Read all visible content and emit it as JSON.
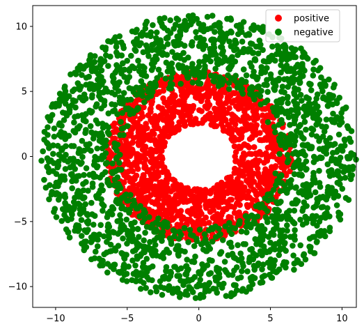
{
  "chart_data": {
    "type": "scatter",
    "title": "",
    "xlabel": "",
    "ylabel": "",
    "xlim": [
      -11.6,
      11.0
    ],
    "ylim": [
      -11.6,
      11.6
    ],
    "xticks": [
      -10,
      -5,
      0,
      5,
      10
    ],
    "yticks": [
      -10,
      -5,
      0,
      5,
      10
    ],
    "xtick_labels": [
      "−10",
      "−5",
      "0",
      "5",
      "10"
    ],
    "ytick_labels": [
      "−10",
      "−5",
      "0",
      "5",
      "10"
    ],
    "grid": false,
    "legend": {
      "placement": "top-right",
      "entries": [
        {
          "label": "positive",
          "color": "#ff0000"
        },
        {
          "label": "negative",
          "color": "#008000"
        }
      ]
    },
    "series": [
      {
        "name": "positive",
        "color": "#ff0000",
        "distribution": {
          "shape": "annulus",
          "center": [
            0,
            0
          ],
          "r_min": 2.5,
          "r_max": 6.5
        }
      },
      {
        "name": "negative",
        "color": "#008000",
        "distribution": {
          "shape": "annulus",
          "center": [
            0,
            0
          ],
          "r_min": 5.5,
          "r_max": 11.0
        }
      }
    ]
  }
}
